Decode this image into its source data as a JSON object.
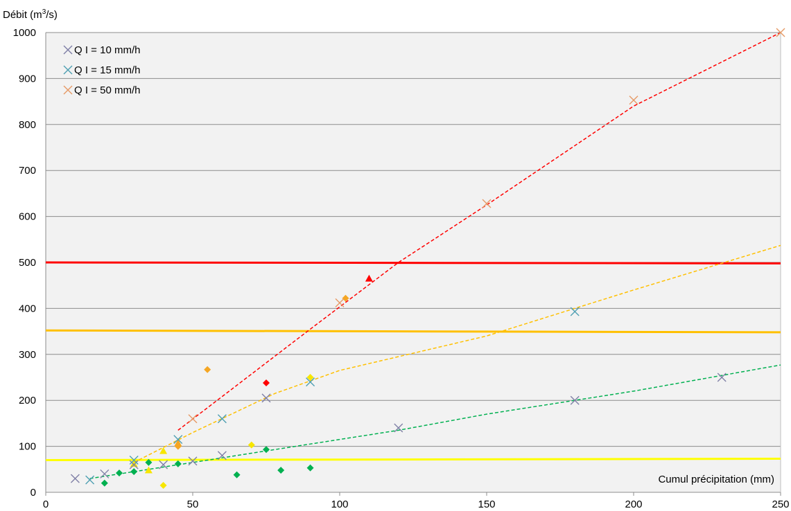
{
  "chart_data": {
    "type": "scatter",
    "ylabel": "Débit (m",
    "ylabel_sup": "3",
    "ylabel_end": "/s)",
    "xlabel": "Cumul précipitation (mm)",
    "xlim": [
      0,
      250
    ],
    "ylim": [
      0,
      1000
    ],
    "x_ticks": [
      0,
      50,
      100,
      150,
      200,
      250
    ],
    "y_ticks": [
      0,
      100,
      200,
      300,
      400,
      500,
      600,
      700,
      800,
      900,
      1000
    ],
    "grid": "horizontal",
    "legend_position": "top-left",
    "colors": {
      "plot_bg": "#f2f2f2",
      "grid": "#8c8c8c",
      "q10": "#7f7fa6",
      "q15": "#4f9fb2",
      "q50": "#e69a66",
      "red": "#ff0000",
      "orange": "#ffc000",
      "yellow": "#ffff00",
      "green": "#00b050",
      "orange_marker": "#f5a623",
      "yellow_marker": "#f7e600"
    },
    "series": [
      {
        "name": "Q I = 10 mm/h",
        "marker": "x",
        "color_key": "q10",
        "x": [
          10,
          20,
          30,
          40,
          50,
          60,
          75,
          120,
          180,
          230
        ],
        "y": [
          30,
          40,
          60,
          60,
          68,
          80,
          205,
          140,
          200,
          250
        ]
      },
      {
        "name": "Q I = 15 mm/h",
        "marker": "x",
        "color_key": "q15",
        "x": [
          15,
          30,
          45,
          60,
          90,
          180
        ],
        "y": [
          27,
          70,
          115,
          160,
          240,
          393
        ]
      },
      {
        "name": "Q I = 50 mm/h",
        "marker": "x",
        "color_key": "q50",
        "x": [
          50,
          100,
          150,
          200,
          250
        ],
        "y": [
          160,
          412,
          628,
          853,
          1000
        ]
      }
    ],
    "other_markers": [
      {
        "color_key": "green",
        "shape": "diamond",
        "x": [
          20,
          25,
          30,
          35,
          45,
          65,
          75,
          80,
          90
        ],
        "y": [
          20,
          42,
          45,
          65,
          62,
          38,
          93,
          48,
          53
        ]
      },
      {
        "color_key": "yellow_marker",
        "shape": "triangle",
        "x": [
          30,
          35,
          40
        ],
        "y": [
          62,
          48,
          90
        ]
      },
      {
        "color_key": "yellow_marker",
        "shape": "diamond",
        "x": [
          40,
          70,
          90
        ],
        "y": [
          15,
          103,
          250
        ]
      },
      {
        "color_key": "orange_marker",
        "shape": "diamond",
        "x": [
          45,
          55,
          102
        ],
        "y": [
          100,
          267,
          422
        ]
      },
      {
        "color_key": "orange_marker",
        "shape": "triangle",
        "x": [
          45
        ],
        "y": [
          107
        ]
      },
      {
        "color_key": "red",
        "shape": "diamond",
        "x": [
          75
        ],
        "y": [
          238
        ]
      },
      {
        "color_key": "red",
        "shape": "triangle",
        "x": [
          110
        ],
        "y": [
          465
        ]
      }
    ],
    "threshold_lines": [
      {
        "color_key": "red",
        "y_start": 500,
        "y_end": 498
      },
      {
        "color_key": "orange",
        "y_start": 352,
        "y_end": 348
      },
      {
        "color_key": "yellow",
        "y_start": 70,
        "y_end": 73
      }
    ],
    "trend_lines": [
      {
        "color_key": "red",
        "x": [
          45,
          90,
          120,
          150,
          200,
          250
        ],
        "y": [
          135,
          355,
          500,
          625,
          840,
          1000
        ]
      },
      {
        "color_key": "orange",
        "x": [
          30,
          50,
          78,
          100,
          150,
          200,
          250
        ],
        "y": [
          65,
          130,
          215,
          265,
          340,
          440,
          537
        ]
      },
      {
        "color_key": "green",
        "x": [
          15,
          45,
          75,
          120,
          150,
          200,
          250
        ],
        "y": [
          30,
          60,
          90,
          135,
          170,
          220,
          277
        ]
      }
    ]
  }
}
